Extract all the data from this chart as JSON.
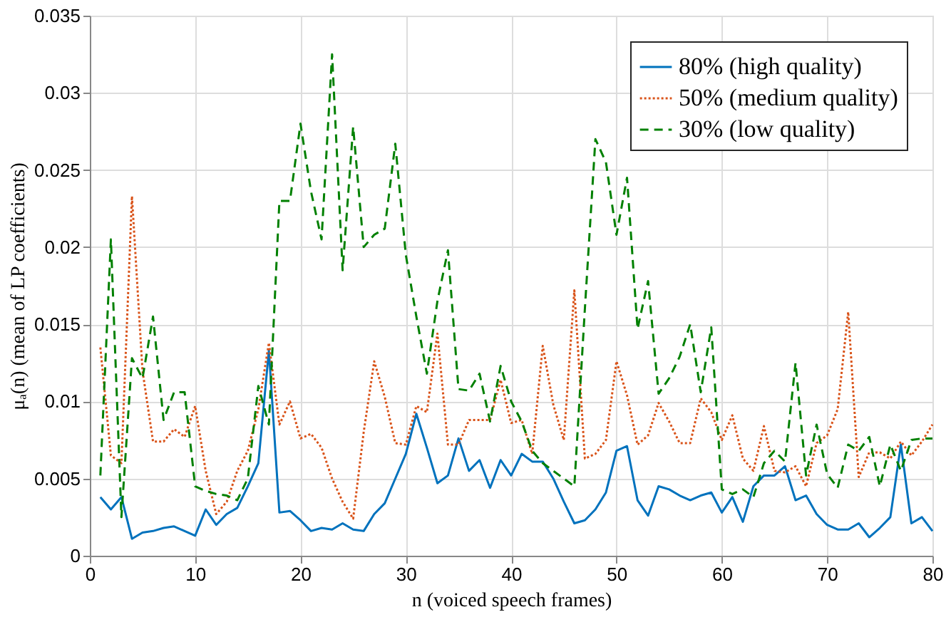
{
  "chart_data": {
    "type": "line",
    "xlabel": "n (voiced speech frames)",
    "ylabel": "μₐ(n) (mean of LP coefficients)",
    "x": [
      1,
      2,
      3,
      4,
      5,
      6,
      7,
      8,
      9,
      10,
      11,
      12,
      13,
      14,
      15,
      16,
      17,
      18,
      19,
      20,
      21,
      22,
      23,
      24,
      25,
      26,
      27,
      28,
      29,
      30,
      31,
      32,
      33,
      34,
      35,
      36,
      37,
      38,
      39,
      40,
      41,
      42,
      43,
      44,
      45,
      46,
      47,
      48,
      49,
      50,
      51,
      52,
      53,
      54,
      55,
      56,
      57,
      58,
      59,
      60,
      61,
      62,
      63,
      64,
      65,
      66,
      67,
      68,
      69,
      70,
      71,
      72,
      73,
      74,
      75,
      76,
      77,
      78,
      79,
      80
    ],
    "series": [
      {
        "name": "80% (high quality)",
        "color": "#0072bd",
        "line_style": "solid",
        "values": [
          0.0038,
          0.003,
          0.0038,
          0.0011,
          0.0015,
          0.0016,
          0.0018,
          0.0019,
          0.0016,
          0.0013,
          0.003,
          0.002,
          0.0027,
          0.0031,
          0.0045,
          0.006,
          0.0133,
          0.0028,
          0.0029,
          0.0023,
          0.0016,
          0.0018,
          0.0017,
          0.0021,
          0.0017,
          0.0016,
          0.0027,
          0.0034,
          0.005,
          0.0066,
          0.0092,
          0.007,
          0.0047,
          0.0052,
          0.0076,
          0.0055,
          0.0062,
          0.0044,
          0.0062,
          0.0052,
          0.0066,
          0.0061,
          0.0061,
          0.005,
          0.0035,
          0.0021,
          0.0023,
          0.003,
          0.0041,
          0.0068,
          0.0071,
          0.0036,
          0.0026,
          0.0045,
          0.0043,
          0.0039,
          0.0036,
          0.0039,
          0.0041,
          0.0028,
          0.0038,
          0.0022,
          0.0045,
          0.0052,
          0.0052,
          0.0058,
          0.0036,
          0.0039,
          0.0027,
          0.002,
          0.0017,
          0.0017,
          0.0021,
          0.0012,
          0.0018,
          0.0025,
          0.0072,
          0.0021,
          0.0025,
          0.0016
        ]
      },
      {
        "name": "50% (medium quality)",
        "color": "#d95319",
        "line_style": "dotted",
        "values": [
          0.0135,
          0.0065,
          0.006,
          0.0233,
          0.012,
          0.0074,
          0.0074,
          0.0082,
          0.0077,
          0.0097,
          0.0055,
          0.0027,
          0.0035,
          0.0055,
          0.0068,
          0.0095,
          0.0138,
          0.0085,
          0.01,
          0.0076,
          0.0079,
          0.007,
          0.005,
          0.0035,
          0.0024,
          0.008,
          0.0126,
          0.0103,
          0.0073,
          0.0072,
          0.0097,
          0.0093,
          0.0144,
          0.0072,
          0.0072,
          0.0088,
          0.0088,
          0.0088,
          0.0114,
          0.0086,
          0.0088,
          0.0066,
          0.0136,
          0.0098,
          0.0075,
          0.0172,
          0.0063,
          0.0066,
          0.0075,
          0.0126,
          0.0104,
          0.0072,
          0.0078,
          0.0099,
          0.0087,
          0.0073,
          0.0073,
          0.0102,
          0.0093,
          0.0075,
          0.0091,
          0.0063,
          0.0055,
          0.0084,
          0.0055,
          0.0054,
          0.0058,
          0.0045,
          0.0073,
          0.0078,
          0.0095,
          0.0158,
          0.0051,
          0.0067,
          0.0067,
          0.0063,
          0.0074,
          0.0065,
          0.0074,
          0.0085
        ]
      },
      {
        "name": "30% (low quality)",
        "color": "#008000",
        "line_style": "dashed",
        "values": [
          0.0052,
          0.0205,
          0.0025,
          0.0128,
          0.0115,
          0.0155,
          0.0088,
          0.0106,
          0.0106,
          0.0045,
          0.0042,
          0.004,
          0.0039,
          0.0036,
          0.005,
          0.011,
          0.0085,
          0.023,
          0.023,
          0.028,
          0.0236,
          0.0205,
          0.0325,
          0.0185,
          0.0278,
          0.02,
          0.0208,
          0.0212,
          0.0267,
          0.0195,
          0.0155,
          0.0118,
          0.0165,
          0.0198,
          0.0108,
          0.0107,
          0.0118,
          0.0087,
          0.0123,
          0.01,
          0.0087,
          0.0068,
          0.006,
          0.0055,
          0.005,
          0.0045,
          0.016,
          0.027,
          0.0255,
          0.0208,
          0.0245,
          0.0147,
          0.0178,
          0.0105,
          0.0115,
          0.0129,
          0.015,
          0.0106,
          0.0148,
          0.0043,
          0.004,
          0.0043,
          0.0038,
          0.006,
          0.0068,
          0.0061,
          0.0125,
          0.0052,
          0.0085,
          0.0053,
          0.0044,
          0.0072,
          0.0068,
          0.0077,
          0.0045,
          0.0072,
          0.0055,
          0.0075,
          0.0076,
          0.0076
        ]
      }
    ],
    "xlim": [
      0,
      80
    ],
    "xticks": [
      0,
      10,
      20,
      30,
      40,
      50,
      60,
      70,
      80
    ],
    "ylim": [
      0,
      0.035
    ],
    "yticks": [
      0,
      0.005,
      0.01,
      0.015,
      0.02,
      0.025,
      0.03,
      0.035
    ],
    "grid": true,
    "legend": "top right",
    "marker": "none"
  }
}
